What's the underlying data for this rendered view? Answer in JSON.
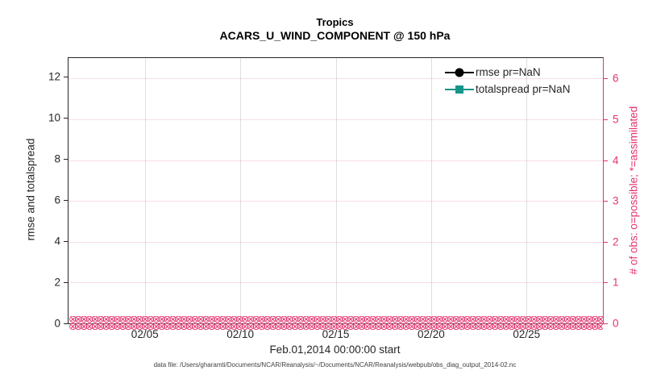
{
  "figure": {
    "title": "Tropics",
    "subtitle": "ACARS_U_WIND_COMPONENT @ 150 hPa",
    "xlabel": "Feb.01,2014 00:00:00 start",
    "ylabel_left": "rmse and totalspread",
    "ylabel_right": "# of obs: o=possible; *=assimilated",
    "datafile_note": "data file: /Users/gharamti/Documents/NCAR/Reanalysis/~/Documents/NCAR/Reanalysis/webpub/obs_diag_output_2014-02.nc"
  },
  "legend": {
    "items": [
      {
        "label": "rmse pr=NaN",
        "marker": "filled-circle",
        "color": "#000000"
      },
      {
        "label": "totalspread pr=NaN",
        "marker": "filled-square",
        "color": "#17948a"
      }
    ],
    "position": "upper-right-inside",
    "box": false
  },
  "chart_data": {
    "type": "line",
    "title": "Tropics",
    "subtitle": "ACARS_U_WIND_COMPONENT @ 150 hPa",
    "xlabel": "Feb.01,2014 00:00:00 start",
    "x_axis": {
      "range_days": [
        0,
        28
      ],
      "start": "Feb.01,2014 00:00:00",
      "ticks": [
        {
          "day": 4,
          "label": "02/05"
        },
        {
          "day": 9,
          "label": "02/10"
        },
        {
          "day": 14,
          "label": "02/15"
        },
        {
          "day": 19,
          "label": "02/20"
        },
        {
          "day": 24,
          "label": "02/25"
        }
      ],
      "grid": true
    },
    "left_axis": {
      "label": "rmse and totalspread",
      "ticks": [
        0,
        2,
        4,
        6,
        8,
        10,
        12
      ],
      "lim": [
        0,
        12.9
      ],
      "color": "#262626",
      "grid": false
    },
    "right_axis": {
      "label": "# of obs: o=possible; *=assimilated",
      "ticks": [
        0,
        1,
        2,
        3,
        4,
        5,
        6
      ],
      "lim": [
        0,
        6.5
      ],
      "color": "#e2336e",
      "grid": true
    },
    "series": [
      {
        "name": "rmse pr=NaN",
        "color": "#000000",
        "marker": "circle",
        "values": null,
        "note": "all values NaN - nothing plotted"
      },
      {
        "name": "totalspread pr=NaN",
        "color": "#17948a",
        "marker": "square",
        "values": null,
        "note": "all values NaN - nothing plotted"
      },
      {
        "name": "# of obs possible (o) and assimilated (*)",
        "color": "#e2336e",
        "axis": "right",
        "constant_value": 0,
        "x_range_days": [
          0,
          28
        ],
        "note": "dense overlapping o and * markers at y=0 across entire x range"
      }
    ],
    "obs_band_glyph": "⊗",
    "grid_on": true,
    "legend_position": "upper right inside"
  }
}
